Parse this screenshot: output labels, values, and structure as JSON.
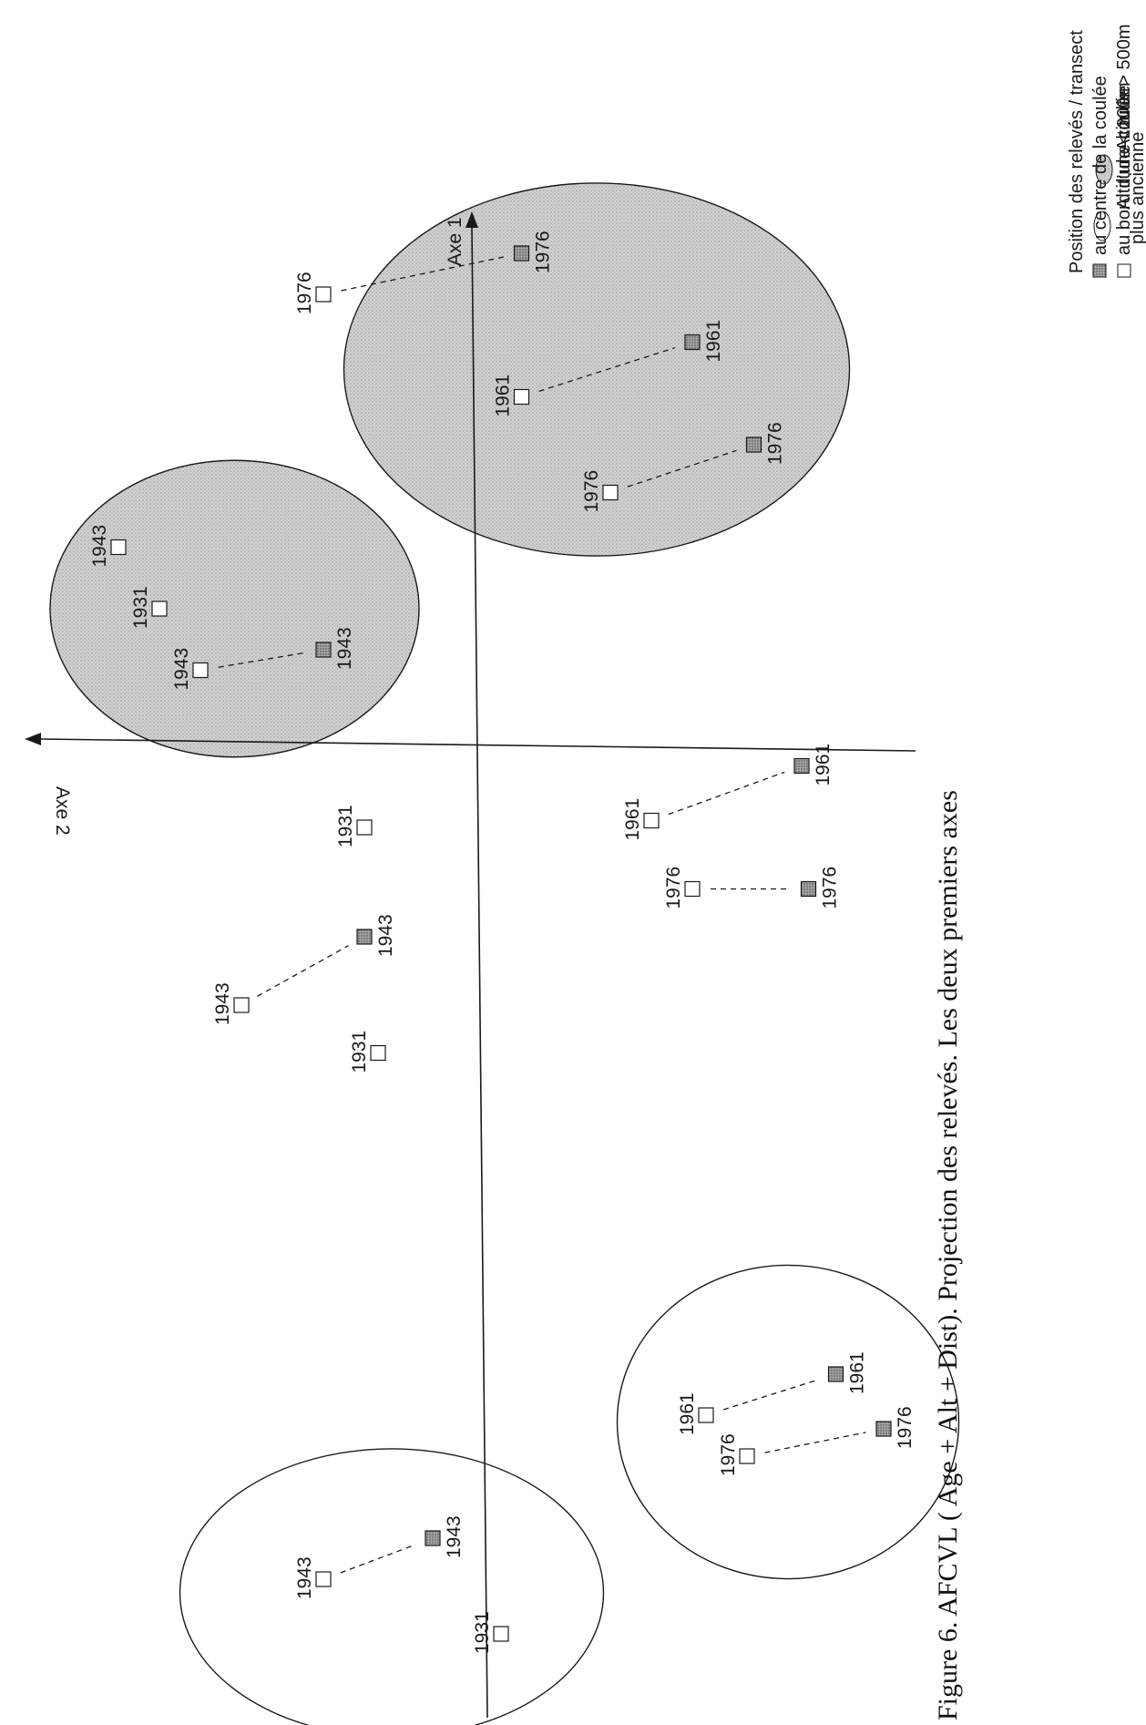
{
  "legend": {
    "high_altitude": "Altitude > 500m",
    "low_altitude": "Altitude < 200m",
    "position_title": "Position des  relevés / transect",
    "center_label": "au centre de la coulée",
    "edge_label_line1": "au bord d'une coulée",
    "edge_label_line2": "plus ancienne"
  },
  "axes": {
    "axis1": "Axe 1",
    "axis2": "Axe 2"
  },
  "caption": "Figure 6. AFCVL ( Age + Alt + Dist). Projection des relevés. Les deux premiers axes",
  "colors": {
    "shaded_fill": "#c9c9c9",
    "center_marker": "#9a9a9a",
    "line": "#1a1a1a"
  },
  "chart_data": {
    "type": "scatter",
    "title": "",
    "xlabel": "Axe 1",
    "ylabel": "Axe 2",
    "points": [
      {
        "label": "1943",
        "position": "edge",
        "altitude": "> 500m",
        "axe1": 1.45,
        "axe2": 2.6
      },
      {
        "label": "1931",
        "position": "edge",
        "altitude": "> 500m",
        "axe1": 1.0,
        "axe2": 2.3
      },
      {
        "label": "1943",
        "position": "edge",
        "altitude": "> 500m",
        "axe1": 0.55,
        "axe2": 2.0
      },
      {
        "label": "1943",
        "position": "center",
        "altitude": "> 500m",
        "axe1": 0.7,
        "axe2": 1.1
      },
      {
        "label": "1931",
        "position": "edge",
        "altitude": "> 500m",
        "axe1": -0.6,
        "axe2": 0.8
      },
      {
        "label": "1976",
        "position": "edge",
        "altitude": "> 500m",
        "axe1": 3.3,
        "axe2": 1.1
      },
      {
        "label": "1976",
        "position": "center",
        "altitude": "> 500m",
        "axe1": 3.6,
        "axe2": -0.35
      },
      {
        "label": "1961",
        "position": "edge",
        "altitude": "> 500m",
        "axe1": 2.55,
        "axe2": -0.35
      },
      {
        "label": "1961",
        "position": "center",
        "altitude": "> 500m",
        "axe1": 2.95,
        "axe2": -1.6
      },
      {
        "label": "1976",
        "position": "edge",
        "altitude": "> 500m",
        "axe1": 1.85,
        "axe2": -1.0
      },
      {
        "label": "1976",
        "position": "center",
        "altitude": "> 500m",
        "axe1": 2.2,
        "axe2": -2.05
      },
      {
        "label": "1961",
        "position": "edge",
        "altitude": "none",
        "axe1": -0.55,
        "axe2": -1.3
      },
      {
        "label": "1961",
        "position": "center",
        "altitude": "none",
        "axe1": -0.15,
        "axe2": -2.4
      },
      {
        "label": "1976",
        "position": "edge",
        "altitude": "none",
        "axe1": -1.05,
        "axe2": -1.6
      },
      {
        "label": "1976",
        "position": "center",
        "altitude": "none",
        "axe1": -1.05,
        "axe2": -2.45
      },
      {
        "label": "1943",
        "position": "edge",
        "altitude": "none",
        "axe1": -1.9,
        "axe2": 1.7
      },
      {
        "label": "1943",
        "position": "center",
        "altitude": "none",
        "axe1": -1.4,
        "axe2": 0.8
      },
      {
        "label": "1931",
        "position": "edge",
        "altitude": "none",
        "axe1": -2.25,
        "axe2": 0.7
      },
      {
        "label": "1961",
        "position": "edge",
        "altitude": "< 200m",
        "axe1": -4.9,
        "axe2": -1.7
      },
      {
        "label": "1961",
        "position": "center",
        "altitude": "< 200m",
        "axe1": -4.6,
        "axe2": -2.65
      },
      {
        "label": "1976",
        "position": "edge",
        "altitude": "< 200m",
        "axe1": -5.2,
        "axe2": -2.0
      },
      {
        "label": "1976",
        "position": "center",
        "altitude": "< 200m",
        "axe1": -5.0,
        "axe2": -3.0
      },
      {
        "label": "1943",
        "position": "edge",
        "altitude": "< 200m",
        "axe1": -6.1,
        "axe2": 1.1
      },
      {
        "label": "1943",
        "position": "center",
        "altitude": "< 200m",
        "axe1": -5.8,
        "axe2": 0.3
      },
      {
        "label": "1931",
        "position": "edge",
        "altitude": "< 200m",
        "axe1": -6.5,
        "axe2": -0.2
      }
    ],
    "links": [
      [
        2,
        3
      ],
      [
        5,
        6
      ],
      [
        7,
        8
      ],
      [
        9,
        10
      ],
      [
        11,
        12
      ],
      [
        13,
        14
      ],
      [
        15,
        16
      ],
      [
        18,
        19
      ],
      [
        20,
        21
      ],
      [
        22,
        23
      ]
    ],
    "groups": [
      {
        "altitude": "> 500m",
        "shaded": true,
        "center": [
          1.0,
          1.75
        ],
        "radii": [
          1.35,
          1.75
        ]
      },
      {
        "altitude": "> 500m",
        "shaded": true,
        "center": [
          2.75,
          -0.9
        ],
        "radii": [
          1.85,
          2.2
        ]
      },
      {
        "altitude": "< 200m",
        "shaded": false,
        "center": [
          -4.95,
          -2.3
        ],
        "radii": [
          1.25,
          1.85
        ]
      },
      {
        "altitude": "< 200m",
        "shaded": false,
        "center": [
          -6.2,
          0.6
        ],
        "radii": [
          1.55,
          1.7
        ]
      }
    ]
  }
}
